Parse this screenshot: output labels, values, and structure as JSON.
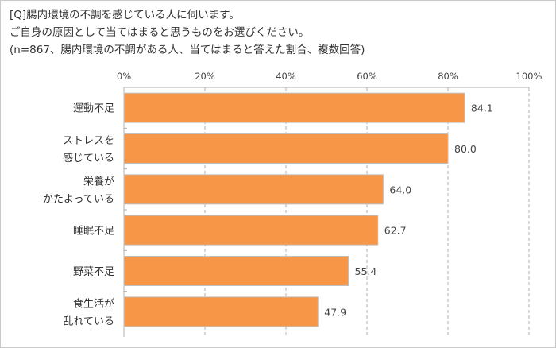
{
  "header": {
    "lines": [
      "[Q]腸内環境の不調を感じている人に伺います。",
      "ご自身の原因として当てはまると思うものをお選びください。",
      "(n=867、腸内環境の不調がある人、当てはまると答えた割合、複数回答)"
    ]
  },
  "chart_data": {
    "type": "bar",
    "orientation": "horizontal",
    "categories": [
      [
        "運動不足"
      ],
      [
        "ストレスを",
        "感じている"
      ],
      [
        "栄養が",
        "かたよっている"
      ],
      [
        "睡眠不足"
      ],
      [
        "野菜不足"
      ],
      [
        "食生活が",
        "乱れている"
      ]
    ],
    "values": [
      84.1,
      80.0,
      64.0,
      62.7,
      55.4,
      47.9
    ],
    "value_labels": [
      "84.1",
      "80.0",
      "64.0",
      "62.7",
      "55.4",
      "47.9"
    ],
    "xlim": [
      0,
      100
    ],
    "xticks": [
      "0%",
      "20%",
      "40%",
      "60%",
      "80%",
      "100%"
    ],
    "grid": "vertical dashed",
    "bar_color": "#F79646",
    "axis_position": "top"
  }
}
